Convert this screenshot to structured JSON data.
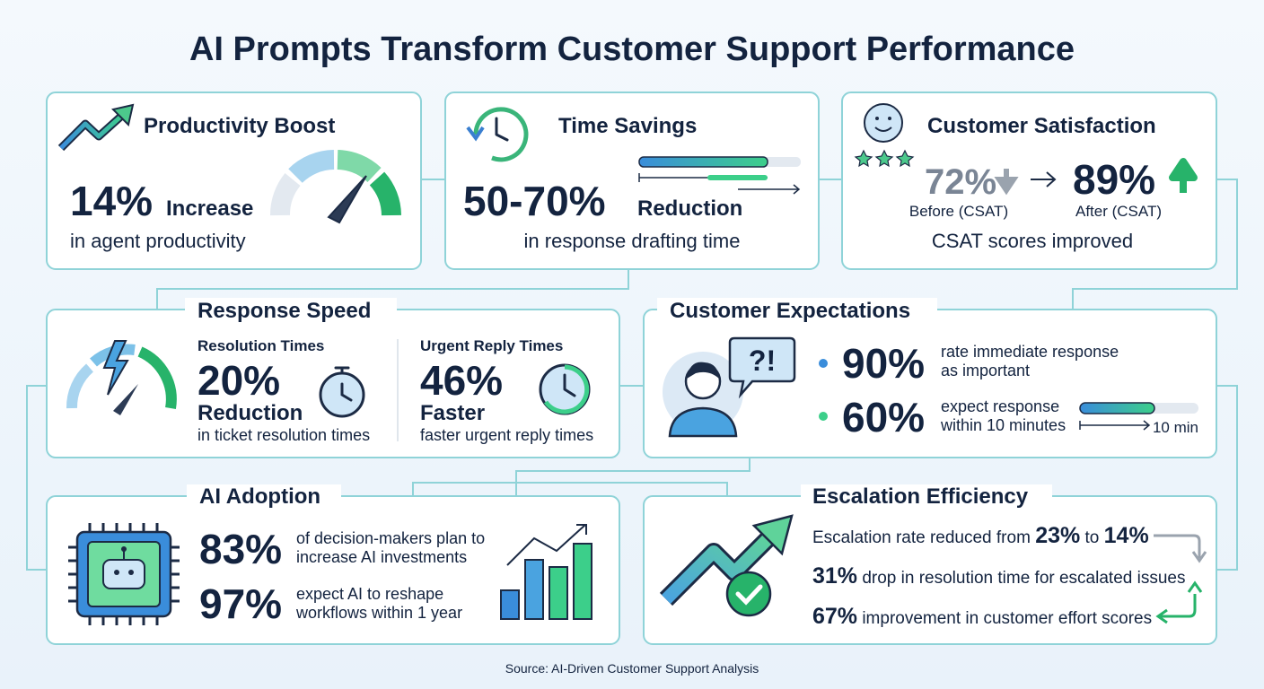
{
  "title": "AI Prompts Transform Customer Support Performance",
  "productivity": {
    "title": "Productivity Boost",
    "value": "14%",
    "word": "Increase",
    "caption": "in agent productivity"
  },
  "time_savings": {
    "title": "Time Savings",
    "value": "50-70%",
    "word": "Reduction",
    "caption": "in response drafting time"
  },
  "satisfaction": {
    "title": "Customer Satisfaction",
    "before": "72%",
    "before_label": "Before (CSAT)",
    "after": "89%",
    "after_label": "After (CSAT)",
    "caption": "CSAT scores improved"
  },
  "response_speed": {
    "title": "Response Speed",
    "left": {
      "heading": "Resolution Times",
      "value": "20%",
      "word": "Reduction",
      "caption": "in ticket resolution times"
    },
    "right": {
      "heading": "Urgent Reply Times",
      "value": "46%",
      "word": "Faster",
      "caption": "faster urgent reply times"
    }
  },
  "expectations": {
    "title": "Customer Expectations",
    "icon_text": "?!",
    "items": [
      {
        "value": "90%",
        "lines": [
          "rate immediate response",
          "as important"
        ]
      },
      {
        "value": "60%",
        "lines": [
          "expect response",
          "within 10 minutes"
        ]
      }
    ],
    "bar_label": "10 min"
  },
  "adoption": {
    "title": "AI Adoption",
    "items": [
      {
        "value": "83%",
        "lines": [
          "of decision-makers plan to",
          "increase AI investments"
        ]
      },
      {
        "value": "97%",
        "lines": [
          "expect AI to reshape",
          "workflows within 1 year"
        ]
      }
    ]
  },
  "escalation": {
    "title": "Escalation Efficiency",
    "rate": {
      "text": "Escalation rate reduced from",
      "from": "23%",
      "to_word": "to",
      "to": "14%"
    },
    "rows": [
      {
        "value": "31%",
        "text": "drop in resolution time for escalated issues"
      },
      {
        "value": "67%",
        "text": "improvement in customer effort scores"
      }
    ]
  },
  "source": "Source: AI-Driven Customer Support Analysis"
}
